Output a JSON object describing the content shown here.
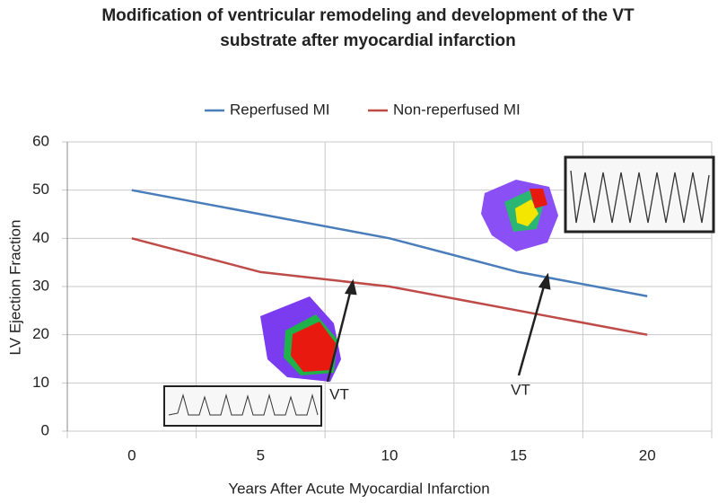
{
  "chart_data": {
    "type": "line",
    "title": "Modification of ventricular remodeling and development of the VT",
    "subtitle": "substrate after myocardial infarction",
    "x_label": "Years After Acute Myocardial Infarction",
    "y_label": "LV Ejection Fraction",
    "categories": [
      "0",
      "5",
      "10",
      "15",
      "20"
    ],
    "series": [
      {
        "name": "Reperfused MI",
        "color": "#4a7ebb",
        "values": [
          50,
          45,
          40,
          33,
          28
        ]
      },
      {
        "name": "Non-reperfused MI",
        "color": "#be4b48",
        "values": [
          40,
          33,
          30,
          25,
          20
        ]
      }
    ],
    "ylim": [
      0,
      60
    ],
    "yticks": [
      0,
      10,
      20,
      30,
      40,
      50,
      60
    ],
    "grid": true,
    "legend": "top",
    "annotations": [
      "VT",
      "VT"
    ]
  }
}
